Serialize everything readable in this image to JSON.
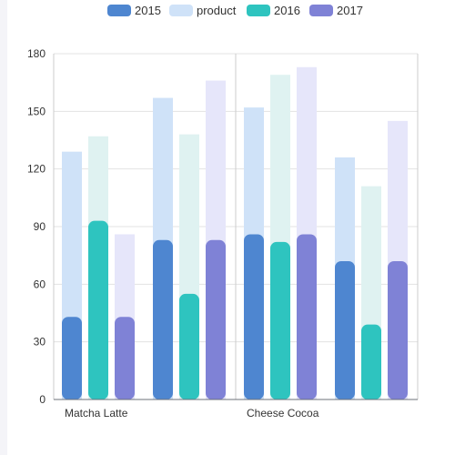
{
  "chart_data": {
    "type": "bar",
    "title": "",
    "xlabel": "",
    "ylabel": "",
    "legend_position": "top",
    "legend": [
      {
        "name": "2015",
        "color": "#4e86d0"
      },
      {
        "name": "product",
        "color": "#cfe2f8"
      },
      {
        "name": "2016",
        "color": "#2ec4bf"
      },
      {
        "name": "2017",
        "color": "#7f82d6"
      }
    ],
    "ylim": [
      0,
      180
    ],
    "yticks": [
      "0",
      "30",
      "60",
      "90",
      "120",
      "150",
      "180"
    ],
    "x_tick_labels": [
      {
        "label": "Matcha Latte",
        "category_index": 0
      },
      {
        "label": "Cheese Cocoa",
        "category_index": 2
      }
    ],
    "categories": [
      "Matcha Latte",
      "",
      "Cheese Cocoa",
      ""
    ],
    "series": [
      {
        "name": "2015",
        "color": "#4e86d0",
        "values": [
          43,
          83,
          86,
          72
        ]
      },
      {
        "name": "2016",
        "color": "#2ec4bf",
        "values": [
          93,
          55,
          82,
          39
        ]
      },
      {
        "name": "2017",
        "color": "#7f82d6",
        "values": [
          43,
          83,
          86,
          72
        ]
      }
    ],
    "background_series": [
      {
        "color": "#cfe2f8",
        "values": [
          129,
          157,
          152,
          126
        ]
      },
      {
        "color": "#dff2f1",
        "values": [
          137,
          138,
          169,
          111
        ]
      },
      {
        "color": "#e6e6fa",
        "values": [
          86,
          166,
          173,
          145
        ]
      }
    ],
    "grid": true
  }
}
